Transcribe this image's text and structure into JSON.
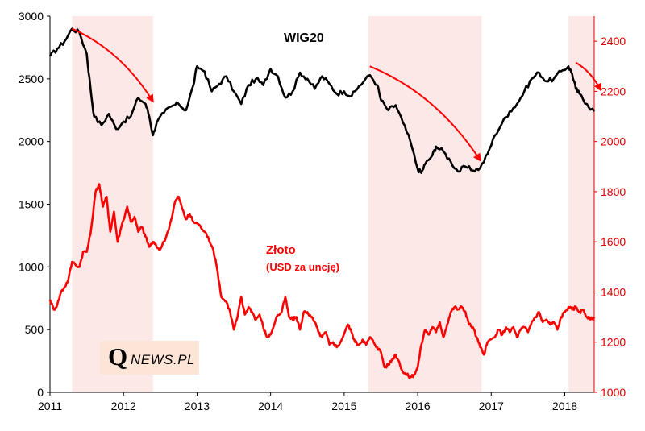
{
  "chart_data": {
    "type": "line",
    "title": "",
    "xlabel": "",
    "x_ticks": [
      "2011",
      "2012",
      "2013",
      "2014",
      "2015",
      "2016",
      "2017",
      "2018"
    ],
    "xlim": [
      2011.0,
      2018.4
    ],
    "ylim_left": [
      0,
      3000
    ],
    "y_ticks_left": [
      "0",
      "500",
      "1000",
      "1500",
      "2000",
      "2500",
      "3000"
    ],
    "ylim_right": [
      1000,
      2500
    ],
    "y_ticks_right": [
      "1000",
      "1200",
      "1400",
      "1600",
      "1800",
      "2000",
      "2200",
      "2400"
    ],
    "grid": false,
    "series": [
      {
        "name": "WIG20",
        "axis": "left",
        "color": "#000000",
        "label": "WIG20",
        "points": [
          [
            2011.0,
            2680
          ],
          [
            2011.1,
            2740
          ],
          [
            2011.2,
            2800
          ],
          [
            2011.3,
            2900
          ],
          [
            2011.4,
            2870
          ],
          [
            2011.5,
            2700
          ],
          [
            2011.55,
            2430
          ],
          [
            2011.6,
            2200
          ],
          [
            2011.7,
            2130
          ],
          [
            2011.8,
            2220
          ],
          [
            2011.9,
            2100
          ],
          [
            2012.0,
            2160
          ],
          [
            2012.1,
            2200
          ],
          [
            2012.2,
            2350
          ],
          [
            2012.3,
            2300
          ],
          [
            2012.35,
            2200
          ],
          [
            2012.4,
            2050
          ],
          [
            2012.45,
            2150
          ],
          [
            2012.55,
            2230
          ],
          [
            2012.65,
            2280
          ],
          [
            2012.75,
            2300
          ],
          [
            2012.85,
            2250
          ],
          [
            2012.95,
            2450
          ],
          [
            2013.0,
            2600
          ],
          [
            2013.1,
            2560
          ],
          [
            2013.2,
            2400
          ],
          [
            2013.3,
            2460
          ],
          [
            2013.4,
            2520
          ],
          [
            2013.5,
            2400
          ],
          [
            2013.6,
            2300
          ],
          [
            2013.7,
            2450
          ],
          [
            2013.8,
            2500
          ],
          [
            2013.9,
            2450
          ],
          [
            2014.0,
            2580
          ],
          [
            2014.1,
            2520
          ],
          [
            2014.2,
            2350
          ],
          [
            2014.3,
            2400
          ],
          [
            2014.4,
            2550
          ],
          [
            2014.5,
            2500
          ],
          [
            2014.6,
            2420
          ],
          [
            2014.7,
            2520
          ],
          [
            2014.8,
            2460
          ],
          [
            2014.9,
            2380
          ],
          [
            2015.0,
            2400
          ],
          [
            2015.1,
            2360
          ],
          [
            2015.2,
            2440
          ],
          [
            2015.35,
            2530
          ],
          [
            2015.45,
            2450
          ],
          [
            2015.5,
            2330
          ],
          [
            2015.6,
            2250
          ],
          [
            2015.7,
            2290
          ],
          [
            2015.8,
            2150
          ],
          [
            2015.9,
            2000
          ],
          [
            2016.0,
            1780
          ],
          [
            2016.05,
            1750
          ],
          [
            2016.1,
            1820
          ],
          [
            2016.2,
            1890
          ],
          [
            2016.25,
            1960
          ],
          [
            2016.35,
            1920
          ],
          [
            2016.45,
            1840
          ],
          [
            2016.55,
            1760
          ],
          [
            2016.65,
            1800
          ],
          [
            2016.75,
            1770
          ],
          [
            2016.85,
            1790
          ],
          [
            2016.95,
            1900
          ],
          [
            2017.05,
            2050
          ],
          [
            2017.15,
            2150
          ],
          [
            2017.25,
            2240
          ],
          [
            2017.35,
            2300
          ],
          [
            2017.45,
            2400
          ],
          [
            2017.55,
            2500
          ],
          [
            2017.65,
            2550
          ],
          [
            2017.75,
            2480
          ],
          [
            2017.85,
            2500
          ],
          [
            2017.95,
            2560
          ],
          [
            2018.05,
            2600
          ],
          [
            2018.1,
            2540
          ],
          [
            2018.15,
            2420
          ],
          [
            2018.2,
            2380
          ],
          [
            2018.3,
            2300
          ],
          [
            2018.4,
            2240
          ]
        ]
      },
      {
        "name": "Złoto",
        "axis": "right",
        "color": "#ff0000",
        "label": "Złoto",
        "sublabel": "(USD za uncję)",
        "points": [
          [
            2011.0,
            1370
          ],
          [
            2011.05,
            1330
          ],
          [
            2011.1,
            1350
          ],
          [
            2011.15,
            1400
          ],
          [
            2011.2,
            1420
          ],
          [
            2011.25,
            1450
          ],
          [
            2011.3,
            1520
          ],
          [
            2011.4,
            1500
          ],
          [
            2011.45,
            1560
          ],
          [
            2011.5,
            1560
          ],
          [
            2011.55,
            1630
          ],
          [
            2011.62,
            1800
          ],
          [
            2011.67,
            1830
          ],
          [
            2011.72,
            1740
          ],
          [
            2011.77,
            1780
          ],
          [
            2011.82,
            1640
          ],
          [
            2011.87,
            1720
          ],
          [
            2011.92,
            1600
          ],
          [
            2011.97,
            1660
          ],
          [
            2012.05,
            1740
          ],
          [
            2012.1,
            1680
          ],
          [
            2012.15,
            1700
          ],
          [
            2012.2,
            1640
          ],
          [
            2012.25,
            1660
          ],
          [
            2012.3,
            1620
          ],
          [
            2012.35,
            1580
          ],
          [
            2012.4,
            1600
          ],
          [
            2012.45,
            1580
          ],
          [
            2012.5,
            1570
          ],
          [
            2012.58,
            1620
          ],
          [
            2012.65,
            1690
          ],
          [
            2012.7,
            1760
          ],
          [
            2012.75,
            1780
          ],
          [
            2012.8,
            1730
          ],
          [
            2012.85,
            1690
          ],
          [
            2012.9,
            1710
          ],
          [
            2012.95,
            1680
          ],
          [
            2013.02,
            1670
          ],
          [
            2013.1,
            1640
          ],
          [
            2013.15,
            1620
          ],
          [
            2013.22,
            1570
          ],
          [
            2013.28,
            1480
          ],
          [
            2013.33,
            1380
          ],
          [
            2013.4,
            1360
          ],
          [
            2013.45,
            1320
          ],
          [
            2013.5,
            1250
          ],
          [
            2013.55,
            1300
          ],
          [
            2013.6,
            1380
          ],
          [
            2013.65,
            1310
          ],
          [
            2013.7,
            1340
          ],
          [
            2013.75,
            1320
          ],
          [
            2013.8,
            1290
          ],
          [
            2013.85,
            1310
          ],
          [
            2013.9,
            1260
          ],
          [
            2013.95,
            1220
          ],
          [
            2014.0,
            1230
          ],
          [
            2014.08,
            1300
          ],
          [
            2014.15,
            1320
          ],
          [
            2014.2,
            1380
          ],
          [
            2014.25,
            1300
          ],
          [
            2014.3,
            1290
          ],
          [
            2014.35,
            1300
          ],
          [
            2014.4,
            1250
          ],
          [
            2014.45,
            1320
          ],
          [
            2014.5,
            1320
          ],
          [
            2014.55,
            1300
          ],
          [
            2014.6,
            1280
          ],
          [
            2014.65,
            1240
          ],
          [
            2014.7,
            1220
          ],
          [
            2014.75,
            1240
          ],
          [
            2014.8,
            1190
          ],
          [
            2014.85,
            1200
          ],
          [
            2014.9,
            1180
          ],
          [
            2014.95,
            1200
          ],
          [
            2015.05,
            1270
          ],
          [
            2015.1,
            1240
          ],
          [
            2015.15,
            1200
          ],
          [
            2015.2,
            1190
          ],
          [
            2015.25,
            1210
          ],
          [
            2015.3,
            1190
          ],
          [
            2015.35,
            1220
          ],
          [
            2015.4,
            1200
          ],
          [
            2015.45,
            1180
          ],
          [
            2015.5,
            1160
          ],
          [
            2015.55,
            1100
          ],
          [
            2015.6,
            1110
          ],
          [
            2015.65,
            1130
          ],
          [
            2015.7,
            1150
          ],
          [
            2015.75,
            1120
          ],
          [
            2015.8,
            1080
          ],
          [
            2015.85,
            1070
          ],
          [
            2015.9,
            1060
          ],
          [
            2015.95,
            1070
          ],
          [
            2016.0,
            1100
          ],
          [
            2016.05,
            1190
          ],
          [
            2016.1,
            1250
          ],
          [
            2016.15,
            1230
          ],
          [
            2016.2,
            1260
          ],
          [
            2016.25,
            1240
          ],
          [
            2016.3,
            1280
          ],
          [
            2016.35,
            1220
          ],
          [
            2016.4,
            1270
          ],
          [
            2016.45,
            1320
          ],
          [
            2016.5,
            1340
          ],
          [
            2016.55,
            1330
          ],
          [
            2016.6,
            1340
          ],
          [
            2016.65,
            1320
          ],
          [
            2016.7,
            1270
          ],
          [
            2016.75,
            1260
          ],
          [
            2016.8,
            1220
          ],
          [
            2016.85,
            1180
          ],
          [
            2016.9,
            1150
          ],
          [
            2016.95,
            1200
          ],
          [
            2017.05,
            1220
          ],
          [
            2017.1,
            1250
          ],
          [
            2017.15,
            1230
          ],
          [
            2017.2,
            1260
          ],
          [
            2017.25,
            1240
          ],
          [
            2017.3,
            1260
          ],
          [
            2017.35,
            1220
          ],
          [
            2017.4,
            1250
          ],
          [
            2017.45,
            1260
          ],
          [
            2017.5,
            1240
          ],
          [
            2017.55,
            1280
          ],
          [
            2017.6,
            1300
          ],
          [
            2017.65,
            1320
          ],
          [
            2017.7,
            1280
          ],
          [
            2017.75,
            1290
          ],
          [
            2017.8,
            1270
          ],
          [
            2017.85,
            1280
          ],
          [
            2017.9,
            1250
          ],
          [
            2017.95,
            1300
          ],
          [
            2018.0,
            1320
          ],
          [
            2018.05,
            1340
          ],
          [
            2018.1,
            1330
          ],
          [
            2018.15,
            1340
          ],
          [
            2018.2,
            1320
          ],
          [
            2018.25,
            1330
          ],
          [
            2018.3,
            1300
          ],
          [
            2018.35,
            1290
          ],
          [
            2018.4,
            1300
          ]
        ]
      }
    ],
    "shaded_periods": [
      [
        2011.3,
        2012.4
      ],
      [
        2015.33,
        2016.87
      ],
      [
        2018.05,
        2018.5
      ]
    ],
    "trend_arrows": [
      {
        "from": [
          2011.3,
          2900
        ],
        "to": [
          2012.4,
          2320
        ]
      },
      {
        "from": [
          2015.35,
          2600
        ],
        "to": [
          2016.85,
          1850
        ]
      },
      {
        "from": [
          2018.15,
          2630
        ],
        "to": [
          2018.5,
          2410
        ]
      }
    ],
    "colors": {
      "shading": "#fde8e8",
      "arrow": "#ff0000",
      "gold": "#ff0000",
      "wig": "#000000",
      "right_axis": "#e00000"
    }
  },
  "logo": {
    "first_letter": "Q",
    "rest": "NEWS.PL"
  }
}
